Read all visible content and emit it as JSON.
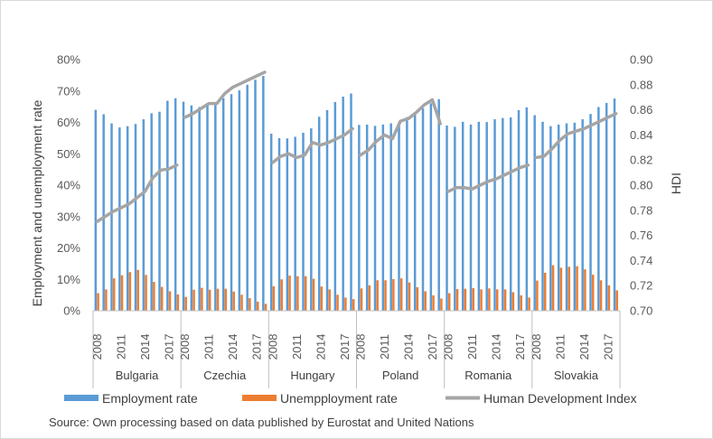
{
  "chart_data": {
    "type": "bar",
    "title": "",
    "ylabel": "Employment and unemployment rate",
    "y2label": "HDI",
    "ylim": [
      0,
      80
    ],
    "yticks": [
      0,
      10,
      20,
      30,
      40,
      50,
      60,
      70,
      80
    ],
    "ytick_labels": [
      "0%",
      "10%",
      "20%",
      "30%",
      "40%",
      "50%",
      "60%",
      "70%",
      "80%"
    ],
    "y2lim": [
      0.7,
      0.9
    ],
    "y2ticks": [
      0.7,
      0.72,
      0.74,
      0.76,
      0.78,
      0.8,
      0.82,
      0.84,
      0.86,
      0.88,
      0.9
    ],
    "y2tick_labels": [
      "0.70",
      "0.72",
      "0.74",
      "0.76",
      "0.78",
      "0.80",
      "0.82",
      "0.84",
      "0.86",
      "0.88",
      "0.90"
    ],
    "years": [
      2008,
      2009,
      2010,
      2011,
      2012,
      2013,
      2014,
      2015,
      2016,
      2017,
      2018
    ],
    "year_tick_labels": [
      "2008",
      "2011",
      "2014",
      "2017"
    ],
    "year_tick_indices": [
      0,
      3,
      6,
      9
    ],
    "groups": [
      {
        "name": "Bulgaria",
        "employment": [
          64.0,
          62.6,
          59.7,
          58.4,
          58.8,
          59.5,
          61.0,
          62.9,
          63.4,
          66.9,
          67.7
        ],
        "unemployment": [
          5.6,
          6.8,
          10.3,
          11.3,
          12.3,
          13.0,
          11.4,
          9.2,
          7.6,
          6.2,
          5.2
        ],
        "hdi": [
          0.771,
          0.775,
          0.779,
          0.782,
          0.785,
          0.79,
          0.795,
          0.806,
          0.812,
          0.813,
          0.816
        ]
      },
      {
        "name": "Czechia",
        "employment": [
          66.6,
          65.4,
          64.9,
          65.7,
          66.5,
          67.7,
          69.0,
          70.2,
          72.0,
          73.6,
          74.8
        ],
        "unemployment": [
          4.4,
          6.7,
          7.3,
          6.7,
          7.0,
          7.0,
          6.1,
          5.1,
          4.0,
          2.9,
          2.2
        ],
        "hdi": [
          0.854,
          0.857,
          0.861,
          0.865,
          0.865,
          0.873,
          0.878,
          0.881,
          0.884,
          0.887,
          0.89
        ]
      },
      {
        "name": "Hungary",
        "employment": [
          56.4,
          55.0,
          54.9,
          55.4,
          56.7,
          58.1,
          61.8,
          63.9,
          66.5,
          68.2,
          69.2
        ],
        "unemployment": [
          7.8,
          10.0,
          11.2,
          11.0,
          11.0,
          10.2,
          7.7,
          6.8,
          5.1,
          4.2,
          3.7
        ],
        "hdi": [
          0.818,
          0.823,
          0.825,
          0.822,
          0.824,
          0.834,
          0.832,
          0.834,
          0.837,
          0.84,
          0.845
        ]
      },
      {
        "name": "Poland",
        "employment": [
          59.2,
          59.3,
          58.9,
          59.3,
          59.7,
          60.0,
          61.7,
          62.9,
          64.5,
          66.1,
          67.4
        ],
        "unemployment": [
          7.1,
          8.1,
          9.7,
          9.7,
          10.1,
          10.3,
          9.0,
          7.5,
          6.2,
          4.9,
          3.9
        ],
        "hdi": [
          0.824,
          0.828,
          0.835,
          0.84,
          0.837,
          0.851,
          0.853,
          0.858,
          0.864,
          0.868,
          0.849
        ]
      },
      {
        "name": "Romania",
        "employment": [
          59.0,
          58.6,
          60.2,
          59.3,
          60.2,
          60.1,
          61.0,
          61.4,
          61.6,
          63.9,
          64.8
        ],
        "unemployment": [
          5.6,
          6.9,
          7.0,
          7.2,
          6.8,
          7.1,
          6.8,
          6.8,
          5.9,
          4.9,
          4.2
        ],
        "hdi": [
          0.795,
          0.798,
          0.798,
          0.797,
          0.8,
          0.803,
          0.805,
          0.808,
          0.811,
          0.814,
          0.816
        ]
      },
      {
        "name": "Slovakia",
        "employment": [
          62.3,
          60.2,
          58.8,
          59.3,
          59.7,
          59.9,
          61.0,
          62.7,
          64.9,
          66.2,
          67.6
        ],
        "unemployment": [
          9.6,
          12.1,
          14.5,
          13.7,
          14.0,
          14.2,
          13.2,
          11.5,
          9.7,
          8.1,
          6.5
        ],
        "hdi": [
          0.822,
          0.823,
          0.829,
          0.836,
          0.841,
          0.843,
          0.845,
          0.848,
          0.851,
          0.854,
          0.857
        ]
      }
    ],
    "legend": {
      "position": "bottom",
      "items": [
        {
          "label": "Employment rate",
          "color": "#5b9bd5",
          "kind": "bar"
        },
        {
          "label": "Unempployment rate",
          "color": "#ed7d31",
          "kind": "bar"
        },
        {
          "label": "Human Development Index",
          "color": "#a5a5a5",
          "kind": "line"
        }
      ]
    },
    "gridlines": false,
    "source_note": "Source: Own processing based on data published by Eurostat and United Nations"
  }
}
